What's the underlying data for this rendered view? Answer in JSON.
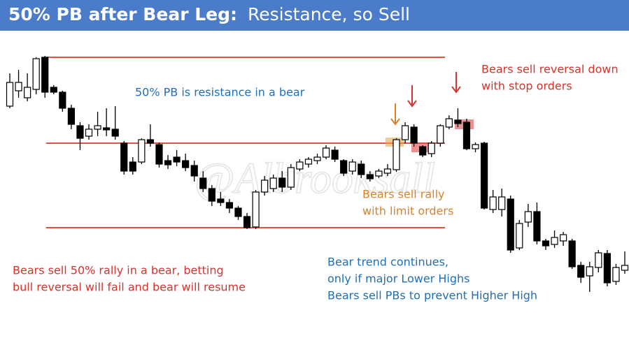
{
  "chart_data": {
    "type": "candlestick",
    "title": "50% PB after Bear Leg:",
    "subtitle": "Resistance, so Sell",
    "watermark": "@Albrooksall",
    "ylim": [
      0,
      400
    ],
    "up_color": "#ffffff",
    "down_color": "#000000",
    "level_color": "#e03a2a",
    "levels": [
      358,
      235,
      114
    ],
    "open": [
      288,
      310,
      300,
      312,
      358,
      315,
      308,
      285,
      260,
      245,
      255,
      257,
      255,
      235,
      208,
      208,
      240,
      233,
      210,
      215,
      210,
      203,
      185,
      170,
      155,
      150,
      142,
      130,
      115,
      165,
      170,
      185,
      172,
      198,
      205,
      210,
      215,
      225,
      210,
      195,
      205,
      190,
      188,
      192,
      197,
      240,
      258,
      230,
      220,
      235,
      258,
      268,
      265,
      227,
      235,
      140,
      140,
      155,
      85,
      122,
      137,
      95,
      90,
      95,
      95,
      60,
      45,
      57,
      77,
      37,
      53
    ],
    "high": [
      335,
      340,
      335,
      358,
      360,
      318,
      310,
      290,
      265,
      262,
      280,
      285,
      288,
      238,
      215,
      242,
      262,
      236,
      218,
      225,
      220,
      210,
      195,
      175,
      165,
      155,
      145,
      135,
      168,
      188,
      190,
      195,
      205,
      212,
      215,
      220,
      232,
      230,
      212,
      212,
      210,
      195,
      198,
      205,
      242,
      265,
      262,
      232,
      238,
      262,
      275,
      285,
      270,
      236,
      237,
      168,
      170,
      160,
      125,
      148,
      150,
      98,
      110,
      108,
      98,
      65,
      65,
      82,
      82,
      62,
      80
    ],
    "low": [
      285,
      300,
      295,
      305,
      300,
      305,
      280,
      255,
      225,
      240,
      245,
      245,
      240,
      190,
      190,
      205,
      230,
      200,
      198,
      202,
      195,
      180,
      165,
      145,
      145,
      135,
      125,
      112,
      112,
      160,
      165,
      165,
      168,
      195,
      200,
      205,
      212,
      208,
      188,
      190,
      185,
      180,
      185,
      188,
      194,
      235,
      230,
      215,
      215,
      230,
      255,
      258,
      225,
      222,
      140,
      135,
      130,
      78,
      82,
      115,
      90,
      82,
      85,
      88,
      55,
      35,
      22,
      50,
      30,
      32,
      48
    ],
    "close": [
      322,
      322,
      315,
      356,
      308,
      308,
      285,
      262,
      242,
      255,
      260,
      254,
      245,
      195,
      195,
      240,
      235,
      205,
      204,
      208,
      200,
      188,
      170,
      152,
      150,
      142,
      130,
      114,
      165,
      182,
      185,
      172,
      200,
      208,
      212,
      215,
      228,
      212,
      192,
      208,
      190,
      184,
      195,
      198,
      240,
      260,
      235,
      218,
      235,
      260,
      270,
      263,
      227,
      233,
      142,
      158,
      158,
      82,
      120,
      137,
      95,
      88,
      100,
      104,
      58,
      43,
      58,
      78,
      35,
      57,
      60
    ],
    "annotations": [
      {
        "lines": [
          "50% PB is resistance in a bear"
        ],
        "color": "#1f6fb8"
      },
      {
        "lines": [
          "Bears sell reversal down",
          "with stop orders"
        ],
        "color": "#d8322a"
      },
      {
        "lines": [
          "Bears sell rally",
          "with limit orders"
        ],
        "color": "#d9822b"
      },
      {
        "lines": [
          "Bears sell 50% rally in a bear, betting",
          "bull reversal will fail and bear will resume"
        ],
        "color": "#d8322a"
      },
      {
        "lines": [
          "Bear trend continues,",
          "only if major Lower Highs",
          "Bears sell PBs to prevent Higher High"
        ],
        "color": "#1f6fb8"
      }
    ]
  }
}
